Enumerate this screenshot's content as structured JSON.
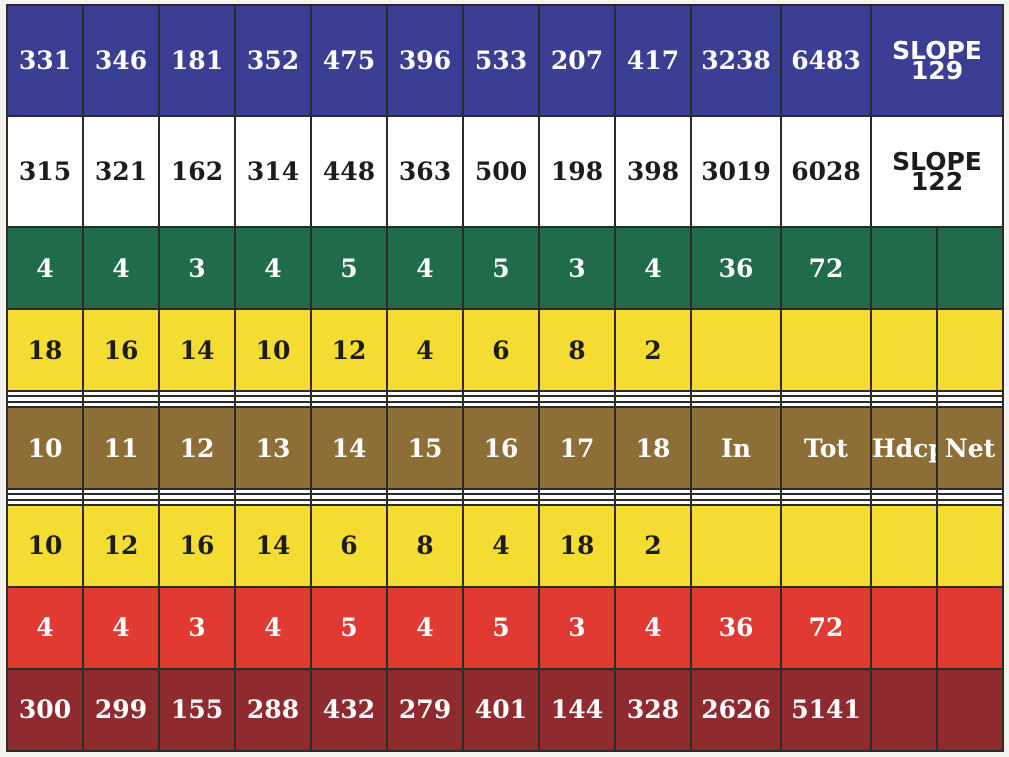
{
  "rows": [
    {
      "name": "blue-tees-row",
      "cells": [
        "331",
        "346",
        "181",
        "352",
        "475",
        "396",
        "533",
        "207",
        "417",
        "3238",
        "6483"
      ],
      "slope": {
        "label": "SLOPE",
        "value": "129"
      }
    },
    {
      "name": "white-tees-row",
      "cells": [
        "315",
        "321",
        "162",
        "314",
        "448",
        "363",
        "500",
        "198",
        "398",
        "3019",
        "6028"
      ],
      "slope": {
        "label": "SLOPE",
        "value": "122"
      }
    },
    {
      "name": "green-par-row",
      "cells": [
        "4",
        "4",
        "3",
        "4",
        "5",
        "4",
        "5",
        "3",
        "4",
        "36",
        "72",
        "",
        ""
      ]
    },
    {
      "name": "yellow-handicap-row",
      "cells": [
        "18",
        "16",
        "14",
        "10",
        "12",
        "4",
        "6",
        "8",
        "2",
        "",
        "",
        "",
        ""
      ]
    },
    {
      "name": "blank-score-row",
      "cells": [
        "",
        "",
        "",
        "",
        "",
        "",
        "",
        "",
        "",
        "",
        "",
        "",
        ""
      ]
    },
    {
      "name": "blank-score-row",
      "cells": [
        "",
        "",
        "",
        "",
        "",
        "",
        "",
        "",
        "",
        "",
        "",
        "",
        ""
      ]
    },
    {
      "name": "blank-score-row",
      "cells": [
        "",
        "",
        "",
        "",
        "",
        "",
        "",
        "",
        "",
        "",
        "",
        "",
        ""
      ]
    },
    {
      "name": "hole-header-row",
      "cells": [
        "10",
        "11",
        "12",
        "13",
        "14",
        "15",
        "16",
        "17",
        "18",
        "In",
        "Tot",
        "Hdcp",
        "Net"
      ]
    },
    {
      "name": "blank-score-row",
      "cells": [
        "",
        "",
        "",
        "",
        "",
        "",
        "",
        "",
        "",
        "",
        "",
        "",
        ""
      ]
    },
    {
      "name": "blank-score-row",
      "cells": [
        "",
        "",
        "",
        "",
        "",
        "",
        "",
        "",
        "",
        "",
        "",
        "",
        ""
      ]
    },
    {
      "name": "blank-score-row",
      "cells": [
        "",
        "",
        "",
        "",
        "",
        "",
        "",
        "",
        "",
        "",
        "",
        "",
        ""
      ]
    },
    {
      "name": "yellow-handicap-row",
      "cells": [
        "10",
        "12",
        "16",
        "14",
        "6",
        "8",
        "4",
        "18",
        "2",
        "",
        "",
        "",
        ""
      ]
    },
    {
      "name": "red-par-row",
      "cells": [
        "4",
        "4",
        "3",
        "4",
        "5",
        "4",
        "5",
        "3",
        "4",
        "36",
        "72",
        "",
        ""
      ]
    },
    {
      "name": "red-tees-row",
      "cells": [
        "300",
        "299",
        "155",
        "288",
        "432",
        "279",
        "401",
        "144",
        "328",
        "2626",
        "5141",
        "",
        ""
      ]
    }
  ],
  "colors": {
    "blue": "#3a3f93",
    "white": "#ffffff",
    "green": "#1f6b4a",
    "yellow": "#f5dc33",
    "gold": "#8d6e36",
    "red": "#e03a32",
    "maroon": "#8f2a2f"
  }
}
